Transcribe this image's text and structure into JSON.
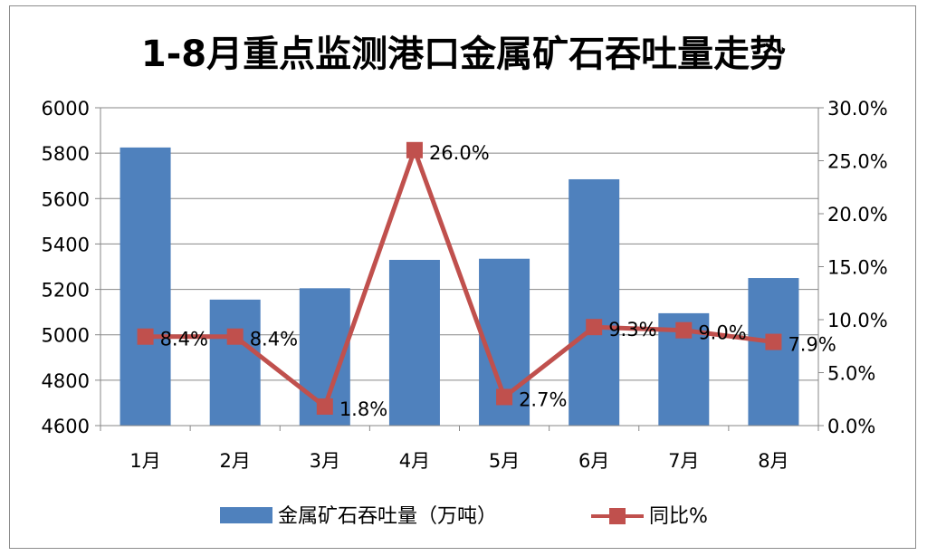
{
  "chart_data": {
    "type": "bar+line",
    "title": "1-8月重点监测港口金属矿石吞吐量走势",
    "categories": [
      "1月",
      "2月",
      "3月",
      "4月",
      "5月",
      "6月",
      "7月",
      "8月"
    ],
    "series": [
      {
        "name": "金属矿石吞吐量（万吨）",
        "type": "bar",
        "axis": "left",
        "color": "#4f81bd",
        "values": [
          5825,
          5155,
          5205,
          5330,
          5335,
          5685,
          5095,
          5250
        ]
      },
      {
        "name": "同比%",
        "type": "line",
        "axis": "right",
        "color": "#c0504d",
        "values": [
          8.4,
          8.4,
          1.8,
          26.0,
          2.7,
          9.3,
          9.0,
          7.9
        ],
        "labels": [
          "8.4%",
          "8.4%",
          "1.8%",
          "26.0%",
          "2.7%",
          "9.3%",
          "9.0%",
          "7.9%"
        ]
      }
    ],
    "y_left": {
      "min": 4600,
      "max": 6000,
      "ticks": [
        "4600",
        "4800",
        "5000",
        "5200",
        "5400",
        "5600",
        "5800",
        "6000"
      ]
    },
    "y_right": {
      "min": 0,
      "max": 30,
      "ticks": [
        "0.0%",
        "5.0%",
        "10.0%",
        "15.0%",
        "20.0%",
        "25.0%",
        "30.0%"
      ]
    },
    "grid": true,
    "legend_position": "bottom"
  }
}
